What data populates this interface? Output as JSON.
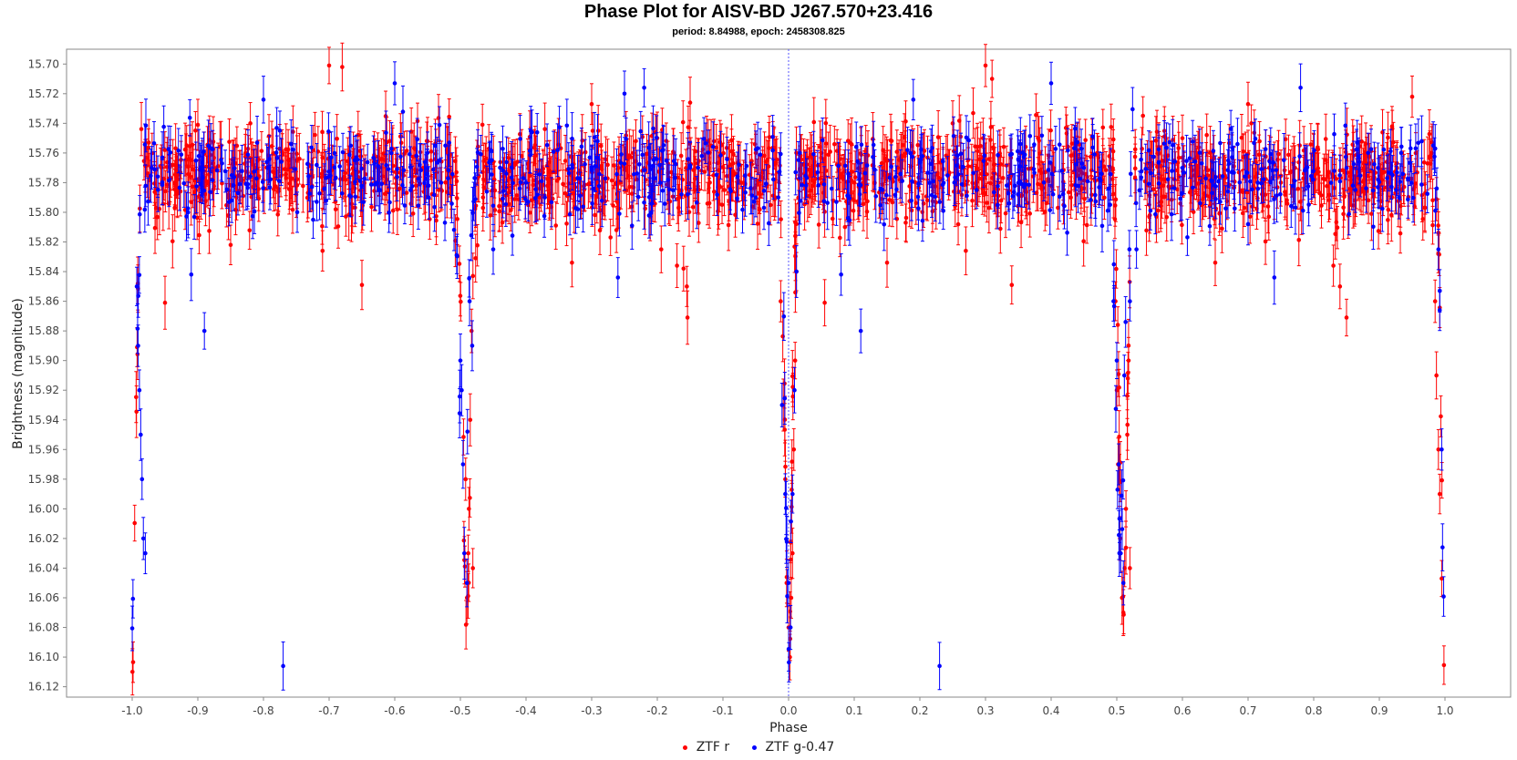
{
  "chart_data": {
    "type": "scatter",
    "title": "Phase Plot for AISV-BD J267.570+23.416",
    "subtitle": "period: 8.84988, epoch: 2458308.825",
    "xlabel": "Phase",
    "ylabel": "Brightness (magnitude)",
    "xlim": [
      -1.1,
      1.1
    ],
    "ylim": [
      16.127,
      15.69
    ],
    "y_inverted": true,
    "x_ticks": [
      "-1.0",
      "-0.9",
      "-0.8",
      "-0.7",
      "-0.6",
      "-0.5",
      "-0.4",
      "-0.3",
      "-0.2",
      "-0.1",
      "0.0",
      "0.1",
      "0.2",
      "0.3",
      "0.4",
      "0.5",
      "0.6",
      "0.7",
      "0.8",
      "0.9",
      "1.0"
    ],
    "y_ticks": [
      "15.70",
      "15.72",
      "15.74",
      "15.76",
      "15.78",
      "15.80",
      "15.82",
      "15.84",
      "15.86",
      "15.88",
      "15.90",
      "15.92",
      "15.94",
      "15.96",
      "15.98",
      "16.00",
      "16.02",
      "16.04",
      "16.06",
      "16.08",
      "16.10",
      "16.12"
    ],
    "grid": false,
    "vertical_reference_line_x": 0.0,
    "legend_position": "bottom",
    "error_bars": true,
    "series": [
      {
        "name": "ZTF r",
        "color": "#ff0000",
        "primary_eclipse": {
          "phase": 0.0,
          "depth_mag": 16.1,
          "width_phase": 0.012
        },
        "secondary_eclipse": {
          "phase": 0.51,
          "depth_mag": 16.07,
          "width_phase": 0.014
        },
        "points": [
          [
            -0.95,
            15.861
          ],
          [
            -0.938,
            15.768
          ],
          [
            -0.9,
            15.741
          ],
          [
            -0.85,
            15.822
          ],
          [
            -0.82,
            15.74
          ],
          [
            -0.75,
            15.788
          ],
          [
            -0.71,
            15.826
          ],
          [
            -0.7,
            15.701
          ],
          [
            -0.69,
            15.798
          ],
          [
            -0.68,
            15.702
          ],
          [
            -0.65,
            15.849
          ],
          [
            -0.62,
            15.764
          ],
          [
            -0.55,
            15.752
          ],
          [
            -0.506,
            15.773
          ],
          [
            -0.487,
            16.0
          ],
          [
            -0.488,
            16.03
          ],
          [
            -0.49,
            16.06
          ],
          [
            -0.492,
            15.98
          ],
          [
            -0.485,
            15.94
          ],
          [
            -0.483,
            15.88
          ],
          [
            -0.481,
            16.04
          ],
          [
            -0.46,
            15.78
          ],
          [
            -0.42,
            15.77
          ],
          [
            -0.38,
            15.79
          ],
          [
            -0.33,
            15.834
          ],
          [
            -0.3,
            15.727
          ],
          [
            -0.29,
            15.745
          ],
          [
            -0.25,
            15.77
          ],
          [
            -0.2,
            15.75
          ],
          [
            -0.17,
            15.836
          ],
          [
            -0.16,
            15.838
          ],
          [
            -0.155,
            15.85
          ],
          [
            -0.154,
            15.871
          ],
          [
            -0.15,
            15.726
          ],
          [
            -0.12,
            15.78
          ],
          [
            -0.05,
            15.76
          ],
          [
            -0.02,
            15.79
          ],
          [
            -0.012,
            15.86
          ],
          [
            -0.008,
            15.93
          ],
          [
            -0.005,
            15.98
          ],
          [
            -0.003,
            16.05
          ],
          [
            0.0,
            16.08
          ],
          [
            0.002,
            16.1
          ],
          [
            0.004,
            16.06
          ],
          [
            0.006,
            16.03
          ],
          [
            0.008,
            15.96
          ],
          [
            0.01,
            15.9
          ],
          [
            0.012,
            15.84
          ],
          [
            0.05,
            15.76
          ],
          [
            0.055,
            15.861
          ],
          [
            0.1,
            15.78
          ],
          [
            0.15,
            15.834
          ],
          [
            0.2,
            15.77
          ],
          [
            0.25,
            15.74
          ],
          [
            0.27,
            15.826
          ],
          [
            0.3,
            15.701
          ],
          [
            0.31,
            15.71
          ],
          [
            0.32,
            15.78
          ],
          [
            0.34,
            15.849
          ],
          [
            0.38,
            15.75
          ],
          [
            0.43,
            15.79
          ],
          [
            0.47,
            15.76
          ],
          [
            0.498,
            15.86
          ],
          [
            0.5,
            15.92
          ],
          [
            0.502,
            15.97
          ],
          [
            0.505,
            16.02
          ],
          [
            0.508,
            16.06
          ],
          [
            0.51,
            16.07
          ],
          [
            0.512,
            16.04
          ],
          [
            0.514,
            16.0
          ],
          [
            0.516,
            15.95
          ],
          [
            0.518,
            15.9
          ],
          [
            0.52,
            16.04
          ],
          [
            0.55,
            15.77
          ],
          [
            0.6,
            15.75
          ],
          [
            0.65,
            15.834
          ],
          [
            0.7,
            15.727
          ],
          [
            0.705,
            15.74
          ],
          [
            0.75,
            15.78
          ],
          [
            0.8,
            15.76
          ],
          [
            0.83,
            15.836
          ],
          [
            0.84,
            15.85
          ],
          [
            0.85,
            15.871
          ],
          [
            0.9,
            15.78
          ],
          [
            0.95,
            15.722
          ],
          [
            0.98,
            15.76
          ],
          [
            0.985,
            15.86
          ],
          [
            0.987,
            15.91
          ],
          [
            0.99,
            15.96
          ],
          [
            0.992,
            15.99
          ],
          [
            0.995,
            16.047
          ]
        ]
      },
      {
        "name": "ZTF g-0.47",
        "color": "#0000ff",
        "primary_eclipse": {
          "phase": 0.0,
          "depth_mag": 16.08,
          "width_phase": 0.012
        },
        "secondary_eclipse": {
          "phase": 0.505,
          "depth_mag": 16.04,
          "width_phase": 0.014
        },
        "points": [
          [
            -0.993,
            15.85
          ],
          [
            -0.991,
            15.89
          ],
          [
            -0.989,
            15.92
          ],
          [
            -0.987,
            15.95
          ],
          [
            -0.985,
            15.98
          ],
          [
            -0.983,
            16.02
          ],
          [
            -0.98,
            16.03
          ],
          [
            -0.91,
            15.842
          ],
          [
            -0.89,
            15.88
          ],
          [
            -0.8,
            15.724
          ],
          [
            -0.77,
            16.106
          ],
          [
            -0.6,
            15.713
          ],
          [
            -0.55,
            15.77
          ],
          [
            -0.5,
            15.9
          ],
          [
            -0.498,
            15.92
          ],
          [
            -0.496,
            15.97
          ],
          [
            -0.494,
            16.03
          ],
          [
            -0.49,
            16.05
          ],
          [
            -0.486,
            15.86
          ],
          [
            -0.482,
            15.89
          ],
          [
            -0.45,
            15.825
          ],
          [
            -0.4,
            15.78
          ],
          [
            -0.3,
            15.77
          ],
          [
            -0.26,
            15.844
          ],
          [
            -0.25,
            15.72
          ],
          [
            -0.22,
            15.716
          ],
          [
            -0.15,
            15.77
          ],
          [
            -0.05,
            15.79
          ],
          [
            -0.01,
            15.93
          ],
          [
            -0.005,
            15.99
          ],
          [
            0.0,
            16.05
          ],
          [
            0.003,
            16.08
          ],
          [
            0.006,
            15.99
          ],
          [
            0.009,
            15.92
          ],
          [
            0.012,
            15.84
          ],
          [
            0.08,
            15.842
          ],
          [
            0.11,
            15.88
          ],
          [
            0.19,
            15.724
          ],
          [
            0.23,
            16.106
          ],
          [
            0.4,
            15.713
          ],
          [
            0.45,
            15.77
          ],
          [
            0.495,
            15.86
          ],
          [
            0.5,
            15.9
          ],
          [
            0.503,
            15.97
          ],
          [
            0.506,
            16.03
          ],
          [
            0.51,
            16.05
          ],
          [
            0.52,
            15.86
          ],
          [
            0.53,
            15.825
          ],
          [
            0.6,
            15.77
          ],
          [
            0.7,
            15.808
          ],
          [
            0.74,
            15.844
          ],
          [
            0.78,
            15.716
          ],
          [
            0.85,
            15.77
          ],
          [
            0.93,
            15.79
          ],
          [
            0.99,
            15.825
          ],
          [
            0.992,
            15.866
          ],
          [
            0.995,
            15.96
          ]
        ]
      }
    ]
  }
}
